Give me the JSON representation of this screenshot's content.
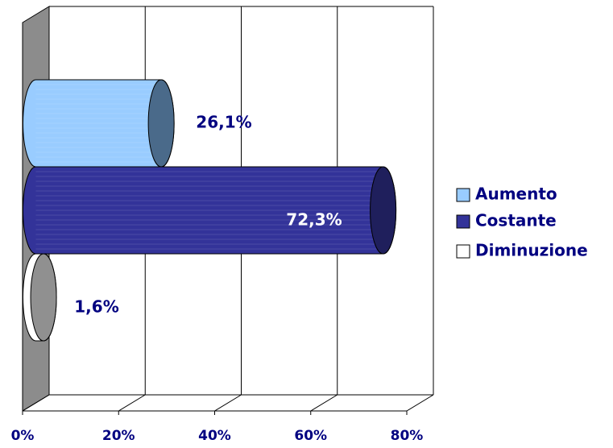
{
  "chart_data": {
    "type": "bar",
    "orientation": "horizontal",
    "style": "3d-cylinder",
    "categories": [
      "Aumento",
      "Costante",
      "Diminuzione"
    ],
    "series": [
      {
        "name": "Aumento",
        "value": 26.1,
        "label": "26,1%",
        "color": "#99ccff",
        "cap_color": "#4a6a8a"
      },
      {
        "name": "Costante",
        "value": 72.3,
        "label": "72,3%",
        "color": "#333399",
        "cap_color": "#1f1f5c"
      },
      {
        "name": "Diminuzione",
        "value": 1.6,
        "label": "1,6%",
        "color": "#ffffff",
        "cap_color": "#909090"
      }
    ],
    "x_ticks": [
      "0%",
      "20%",
      "40%",
      "60%",
      "80%"
    ],
    "xlim": [
      0,
      80
    ],
    "grid": true,
    "legend_position": "right",
    "label_color": "#000080"
  }
}
